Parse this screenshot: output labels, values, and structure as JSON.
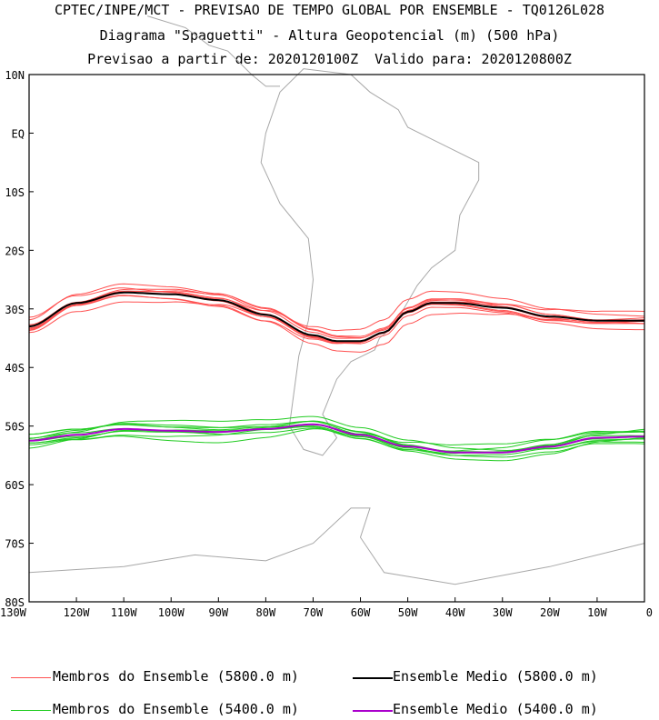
{
  "header": {
    "line1": "CPTEC/INPE/MCT - PREVISAO DE TEMPO GLOBAL POR ENSEMBLE - TQ0126L028",
    "line2": "Diagrama \"Spaguetti\" - Altura Geopotencial (m) (500 hPa)",
    "line3": "Previsao a partir de: 2020120100Z  Valido para: 2020120800Z"
  },
  "axes": {
    "lat_labels": [
      "10N",
      "EQ",
      "10S",
      "20S",
      "30S",
      "40S",
      "50S",
      "60S",
      "70S",
      "80S"
    ],
    "lon_labels": [
      "130W",
      "120W",
      "110W",
      "100W",
      "90W",
      "80W",
      "70W",
      "60W",
      "50W",
      "40W",
      "30W",
      "20W",
      "10W",
      "0"
    ]
  },
  "colors": {
    "member_5800": "#ff5050",
    "mean_5800": "#000000",
    "member_5400": "#22cc22",
    "mean_5400": "#aa00cc",
    "coast": "#a8a8a8"
  },
  "chart_data": {
    "type": "line",
    "title": "Diagrama \"Spaguetti\" - Altura Geopotencial (m) (500 hPa)",
    "xlim_lon": [
      -130,
      0
    ],
    "ylim_lat": [
      -80,
      10
    ],
    "series": [
      {
        "name": "Ensemble Medio (5800.0 m)",
        "lon": [
          -130,
          -120,
          -110,
          -100,
          -90,
          -80,
          -70,
          -65,
          -60,
          -55,
          -50,
          -45,
          -40,
          -30,
          -20,
          -10,
          0
        ],
        "lat": [
          -33,
          -29,
          -27.2,
          -27.5,
          -28.5,
          -31,
          -34.5,
          -35.5,
          -35.5,
          -34,
          -30.5,
          -29,
          -29,
          -29.8,
          -31.3,
          -32,
          -32
        ]
      },
      {
        "name": "Ensemble Medio (5400.0 m)",
        "lon": [
          -130,
          -120,
          -110,
          -100,
          -90,
          -80,
          -70,
          -60,
          -50,
          -40,
          -30,
          -20,
          -10,
          0
        ],
        "lat": [
          -52.5,
          -51.5,
          -50.5,
          -50.8,
          -51,
          -50.5,
          -49.7,
          -51.5,
          -53.5,
          -54.5,
          -54.5,
          -53.5,
          -52,
          -51.8
        ]
      }
    ],
    "member_offsets_5800": [
      0.8,
      -0.9,
      1.5,
      -1.4,
      0.4,
      -0.5,
      2.1,
      -1.9,
      1.1,
      -0.2
    ],
    "member_offsets_5400": [
      0.7,
      -0.8,
      1.3,
      -1.2,
      0.3,
      -0.4,
      1.8,
      -1.6,
      1.0,
      -0.2
    ]
  },
  "legend": {
    "member_5800": "Membros do Ensemble (5800.0 m)",
    "mean_5800": "Ensemble Medio (5800.0 m)",
    "member_5400": "Membros do Ensemble (5400.0 m)",
    "mean_5400": "Ensemble Medio (5400.0 m)"
  }
}
